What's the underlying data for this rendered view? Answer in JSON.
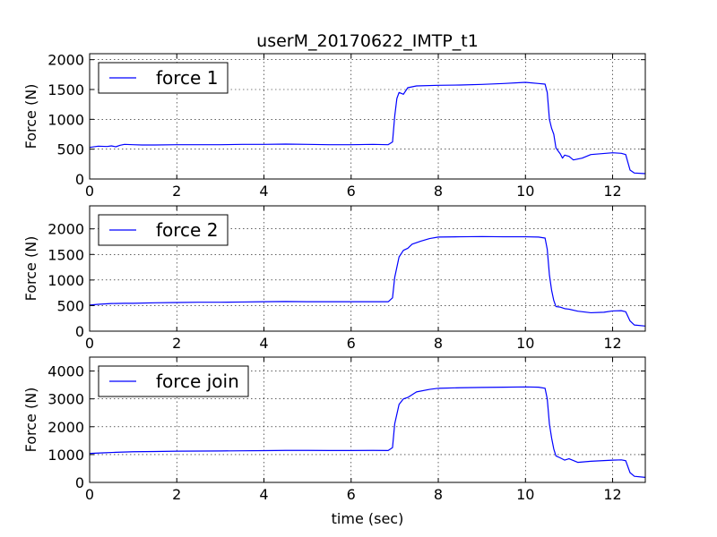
{
  "chart_data": {
    "title": "userM_20170622_IMTP_t1",
    "xlabel": "time (sec)",
    "line_color": "#0000ff",
    "x_ticks": [
      "0",
      "2",
      "4",
      "6",
      "8",
      "10",
      "12"
    ],
    "x_tick_values": [
      0,
      2,
      4,
      6,
      8,
      10,
      12
    ],
    "xlim": [
      0,
      12.75
    ],
    "grid": true,
    "legend_position": "top-left",
    "subplots": [
      {
        "type": "line",
        "ylabel": "Force (N)",
        "ylim": [
          0,
          2100
        ],
        "y_ticks": [
          "0",
          "500",
          "1000",
          "1500",
          "2000"
        ],
        "y_tick_values": [
          0,
          500,
          1000,
          1500,
          2000
        ],
        "series": [
          {
            "name": "force 1",
            "points": [
              [
                0,
                530
              ],
              [
                0.2,
                550
              ],
              [
                0.4,
                545
              ],
              [
                0.5,
                555
              ],
              [
                0.6,
                540
              ],
              [
                0.7,
                565
              ],
              [
                0.8,
                580
              ],
              [
                1.0,
                575
              ],
              [
                1.2,
                570
              ],
              [
                1.5,
                570
              ],
              [
                2.0,
                575
              ],
              [
                2.5,
                575
              ],
              [
                3.0,
                575
              ],
              [
                3.5,
                580
              ],
              [
                4.0,
                580
              ],
              [
                4.5,
                585
              ],
              [
                5.0,
                580
              ],
              [
                5.5,
                575
              ],
              [
                6.0,
                575
              ],
              [
                6.5,
                580
              ],
              [
                6.85,
                575
              ],
              [
                6.95,
                620
              ],
              [
                7.0,
                1050
              ],
              [
                7.05,
                1350
              ],
              [
                7.1,
                1450
              ],
              [
                7.2,
                1420
              ],
              [
                7.3,
                1530
              ],
              [
                7.5,
                1560
              ],
              [
                8.0,
                1570
              ],
              [
                8.5,
                1575
              ],
              [
                9.0,
                1585
              ],
              [
                9.5,
                1600
              ],
              [
                10.0,
                1620
              ],
              [
                10.3,
                1600
              ],
              [
                10.45,
                1590
              ],
              [
                10.5,
                1450
              ],
              [
                10.55,
                1000
              ],
              [
                10.6,
                850
              ],
              [
                10.65,
                750
              ],
              [
                10.7,
                520
              ],
              [
                10.8,
                420
              ],
              [
                10.85,
                350
              ],
              [
                10.9,
                400
              ],
              [
                11.0,
                380
              ],
              [
                11.1,
                320
              ],
              [
                11.3,
                350
              ],
              [
                11.5,
                410
              ],
              [
                12.0,
                440
              ],
              [
                12.2,
                430
              ],
              [
                12.3,
                410
              ],
              [
                12.4,
                150
              ],
              [
                12.5,
                100
              ],
              [
                12.75,
                90
              ]
            ]
          }
        ]
      },
      {
        "type": "line",
        "ylabel": "Force (N)",
        "ylim": [
          0,
          2450
        ],
        "y_ticks": [
          "0",
          "500",
          "1000",
          "1500",
          "2000"
        ],
        "y_tick_values": [
          0,
          500,
          1000,
          1500,
          2000
        ],
        "series": [
          {
            "name": "force 2",
            "points": [
              [
                0,
                510
              ],
              [
                0.2,
                525
              ],
              [
                0.5,
                540
              ],
              [
                0.8,
                545
              ],
              [
                1.0,
                545
              ],
              [
                1.5,
                555
              ],
              [
                2.0,
                560
              ],
              [
                2.5,
                565
              ],
              [
                3.0,
                565
              ],
              [
                3.5,
                570
              ],
              [
                4.0,
                575
              ],
              [
                4.5,
                580
              ],
              [
                5.0,
                575
              ],
              [
                5.5,
                575
              ],
              [
                6.0,
                575
              ],
              [
                6.5,
                575
              ],
              [
                6.85,
                575
              ],
              [
                6.95,
                650
              ],
              [
                7.0,
                1050
              ],
              [
                7.1,
                1450
              ],
              [
                7.2,
                1580
              ],
              [
                7.3,
                1620
              ],
              [
                7.4,
                1700
              ],
              [
                7.6,
                1760
              ],
              [
                7.8,
                1810
              ],
              [
                8.0,
                1840
              ],
              [
                8.5,
                1845
              ],
              [
                9.0,
                1850
              ],
              [
                9.5,
                1845
              ],
              [
                10.0,
                1845
              ],
              [
                10.3,
                1840
              ],
              [
                10.45,
                1820
              ],
              [
                10.5,
                1600
              ],
              [
                10.55,
                1100
              ],
              [
                10.6,
                800
              ],
              [
                10.65,
                600
              ],
              [
                10.7,
                480
              ],
              [
                10.8,
                470
              ],
              [
                10.9,
                440
              ],
              [
                11.0,
                430
              ],
              [
                11.2,
                390
              ],
              [
                11.5,
                360
              ],
              [
                11.8,
                370
              ],
              [
                12.0,
                395
              ],
              [
                12.2,
                400
              ],
              [
                12.3,
                380
              ],
              [
                12.4,
                200
              ],
              [
                12.5,
                120
              ],
              [
                12.75,
                100
              ]
            ]
          }
        ]
      },
      {
        "type": "line",
        "ylabel": "Force (N)",
        "ylim": [
          0,
          4500
        ],
        "y_ticks": [
          "0",
          "1000",
          "2000",
          "3000",
          "4000"
        ],
        "y_tick_values": [
          0,
          1000,
          2000,
          3000,
          4000
        ],
        "series": [
          {
            "name": "force join",
            "points": [
              [
                0,
                1040
              ],
              [
                0.3,
                1060
              ],
              [
                0.6,
                1080
              ],
              [
                1.0,
                1100
              ],
              [
                1.5,
                1110
              ],
              [
                2.0,
                1120
              ],
              [
                2.5,
                1125
              ],
              [
                3.0,
                1130
              ],
              [
                3.5,
                1135
              ],
              [
                4.0,
                1140
              ],
              [
                4.5,
                1150
              ],
              [
                5.0,
                1150
              ],
              [
                5.5,
                1145
              ],
              [
                6.0,
                1145
              ],
              [
                6.5,
                1150
              ],
              [
                6.85,
                1145
              ],
              [
                6.95,
                1250
              ],
              [
                7.0,
                2100
              ],
              [
                7.1,
                2800
              ],
              [
                7.2,
                3000
              ],
              [
                7.3,
                3050
              ],
              [
                7.5,
                3250
              ],
              [
                7.8,
                3340
              ],
              [
                8.0,
                3380
              ],
              [
                8.5,
                3400
              ],
              [
                9.0,
                3410
              ],
              [
                9.5,
                3420
              ],
              [
                10.0,
                3430
              ],
              [
                10.3,
                3420
              ],
              [
                10.45,
                3380
              ],
              [
                10.5,
                3000
              ],
              [
                10.55,
                2100
              ],
              [
                10.6,
                1600
              ],
              [
                10.65,
                1200
              ],
              [
                10.7,
                950
              ],
              [
                10.8,
                880
              ],
              [
                10.9,
                800
              ],
              [
                11.0,
                850
              ],
              [
                11.2,
                720
              ],
              [
                11.5,
                760
              ],
              [
                12.0,
                800
              ],
              [
                12.2,
                810
              ],
              [
                12.3,
                780
              ],
              [
                12.4,
                350
              ],
              [
                12.5,
                220
              ],
              [
                12.75,
                180
              ]
            ]
          }
        ]
      }
    ]
  }
}
